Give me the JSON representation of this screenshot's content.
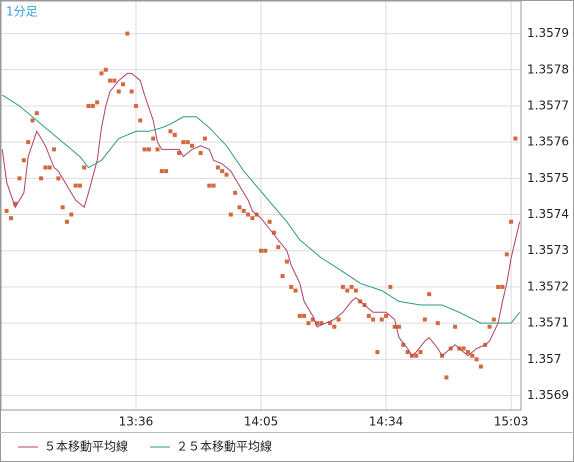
{
  "chart_data": {
    "type": "line",
    "timeframe_label": "1分足",
    "xlim": [
      784.7,
      905.3
    ],
    "xticks": [
      {
        "value": 816,
        "label": "13:36"
      },
      {
        "value": 845,
        "label": "14:05"
      },
      {
        "value": 874,
        "label": "14:34"
      },
      {
        "value": 903,
        "label": "15:03"
      }
    ],
    "ylim": [
      1.35686,
      1.35799
    ],
    "yticks": [
      1.3569,
      1.357,
      1.3571,
      1.3572,
      1.3573,
      1.3574,
      1.3575,
      1.3576,
      1.3577,
      1.3578,
      1.3579
    ],
    "grid": true,
    "series": [
      {
        "style": "markers",
        "color": "#d2693c",
        "x": [
          786,
          787,
          788,
          789,
          790,
          791,
          792,
          793,
          794,
          795,
          796,
          797,
          798,
          799,
          800,
          801,
          802,
          803,
          804,
          805,
          806,
          807,
          808,
          809,
          810,
          811,
          812,
          813,
          814,
          815,
          816,
          817,
          818,
          819,
          820,
          821,
          822,
          823,
          824,
          825,
          826,
          827,
          828,
          829,
          831,
          832,
          833,
          834,
          835,
          836,
          837,
          838,
          839,
          840,
          841,
          842,
          843,
          844,
          845,
          846,
          847,
          848,
          849,
          850,
          851,
          852,
          853,
          854,
          855,
          856,
          857,
          858,
          859,
          861,
          862,
          863,
          864,
          865,
          866,
          867,
          868,
          869,
          870,
          871,
          872,
          873,
          874,
          875,
          876,
          877,
          878,
          879,
          880,
          881,
          882,
          883,
          884,
          886,
          887,
          888,
          889,
          890,
          891,
          892,
          893,
          894,
          895,
          896,
          897,
          898,
          899,
          900,
          901,
          902,
          903,
          904
        ],
        "values": [
          1.35741,
          1.35739,
          1.35743,
          1.3575,
          1.35755,
          1.3576,
          1.35766,
          1.35768,
          1.3575,
          1.35753,
          1.35753,
          1.35758,
          1.3575,
          1.35742,
          1.35738,
          1.3574,
          1.35748,
          1.35748,
          1.35753,
          1.3577,
          1.3577,
          1.35771,
          1.35779,
          1.3578,
          1.35777,
          1.35777,
          1.35774,
          1.35776,
          1.3579,
          1.35774,
          1.3577,
          1.35766,
          1.35758,
          1.35758,
          1.35761,
          1.35758,
          1.35752,
          1.35752,
          1.35763,
          1.35762,
          1.35757,
          1.3576,
          1.3576,
          1.35759,
          1.35757,
          1.35761,
          1.35748,
          1.35748,
          1.35753,
          1.35752,
          1.35751,
          1.3574,
          1.35746,
          1.35742,
          1.35741,
          1.3574,
          1.35739,
          1.3574,
          1.3573,
          1.3573,
          1.35738,
          1.35735,
          1.35731,
          1.35723,
          1.35727,
          1.3572,
          1.35719,
          1.35712,
          1.35712,
          1.3571,
          1.35711,
          1.3571,
          1.3571,
          1.3571,
          1.35709,
          1.35711,
          1.3572,
          1.35719,
          1.3572,
          1.35719,
          1.35716,
          1.35715,
          1.35712,
          1.35711,
          1.35702,
          1.35711,
          1.35712,
          1.3572,
          1.35709,
          1.35709,
          1.35704,
          1.35702,
          1.35701,
          1.35701,
          1.35702,
          1.35711,
          1.35718,
          1.3571,
          1.35701,
          1.35695,
          1.35703,
          1.35709,
          1.35703,
          1.35703,
          1.35702,
          1.35701,
          1.357,
          1.35698,
          1.35704,
          1.35709,
          1.35711,
          1.3572,
          1.3572,
          1.35729,
          1.35738,
          1.35761
        ]
      },
      {
        "name": "５本移動平均線",
        "color": "#b0405e",
        "x": [
          785,
          786,
          788,
          790,
          791,
          793,
          795,
          797,
          798,
          800,
          802,
          804,
          805,
          807,
          808,
          809,
          810,
          812,
          814,
          815,
          817,
          818,
          820,
          821,
          822,
          824,
          826,
          827,
          829,
          831,
          833,
          834,
          836,
          838,
          840,
          842,
          843,
          845,
          847,
          849,
          851,
          852,
          854,
          855,
          857,
          858,
          860,
          862,
          864,
          866,
          867,
          868,
          870,
          871,
          873,
          874,
          876,
          877,
          879,
          880,
          881,
          883,
          884,
          886,
          887,
          888,
          890,
          891,
          893,
          894,
          895,
          897,
          898,
          900,
          901,
          902,
          903,
          905
        ],
        "values": [
          1.35758,
          1.35749,
          1.35742,
          1.35746,
          1.35756,
          1.35763,
          1.35759,
          1.35753,
          1.35752,
          1.35748,
          1.35744,
          1.35742,
          1.35746,
          1.35755,
          1.35764,
          1.3577,
          1.35774,
          1.35777,
          1.35779,
          1.35779,
          1.35777,
          1.35773,
          1.35766,
          1.3576,
          1.35758,
          1.35758,
          1.35758,
          1.35756,
          1.35758,
          1.35759,
          1.35758,
          1.35755,
          1.35754,
          1.35752,
          1.35748,
          1.35744,
          1.35741,
          1.35739,
          1.35736,
          1.35733,
          1.3573,
          1.35726,
          1.35721,
          1.35716,
          1.35712,
          1.35709,
          1.3571,
          1.35711,
          1.35713,
          1.35716,
          1.35717,
          1.35716,
          1.35714,
          1.35713,
          1.35713,
          1.35713,
          1.35711,
          1.35706,
          1.35703,
          1.35701,
          1.35702,
          1.35705,
          1.35706,
          1.35703,
          1.35701,
          1.35702,
          1.35704,
          1.35703,
          1.35701,
          1.35702,
          1.35703,
          1.35704,
          1.35705,
          1.3571,
          1.35716,
          1.35721,
          1.35728,
          1.35738
        ]
      },
      {
        "name": "２５本移動平均線",
        "color": "#2a9c80",
        "x": [
          785,
          789,
          794,
          798,
          803,
          805,
          808,
          810,
          812,
          816,
          819,
          822,
          824,
          827,
          830,
          833,
          837,
          841,
          846,
          851,
          854,
          859,
          863,
          868,
          873,
          877,
          882,
          887,
          891,
          896,
          900,
          903,
          905
        ],
        "values": [
          1.35773,
          1.3577,
          1.35765,
          1.35761,
          1.35756,
          1.35753,
          1.35755,
          1.35758,
          1.35761,
          1.35763,
          1.35763,
          1.35764,
          1.35765,
          1.35767,
          1.35767,
          1.35764,
          1.35759,
          1.35752,
          1.35745,
          1.35738,
          1.35733,
          1.35728,
          1.35725,
          1.35721,
          1.35719,
          1.35716,
          1.35715,
          1.35715,
          1.35713,
          1.3571,
          1.3571,
          1.3571,
          1.35713
        ]
      }
    ]
  }
}
